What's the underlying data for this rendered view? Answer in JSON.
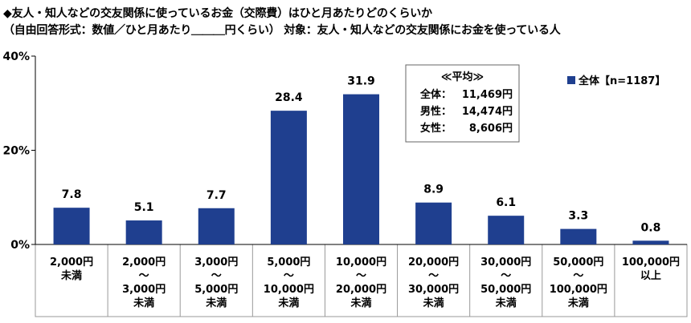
{
  "chart_title": {
    "line1": "◆友人・知人などの交友関係に使っているお金（交際費）はひと月あたりどのくらいか",
    "line2": "（自由回答形式：数値／ひと月あたり＿＿＿円くらい） 対象：友人・知人などの交友関係にお金を使っている人"
  },
  "colors": {
    "bar": "#1f3f8f",
    "axis": "#000000",
    "border": "#999999"
  },
  "legend": {
    "label": "全体【n=1187】",
    "position": "top-right"
  },
  "average_box": {
    "header": "≪平均≫",
    "rows": [
      {
        "label": "全体：",
        "value": "11,469円"
      },
      {
        "label": "男性：",
        "value": "14,474円"
      },
      {
        "label": "女性：",
        "value": " 8,606円"
      }
    ]
  },
  "chart_data": {
    "type": "bar",
    "categories": [
      [
        "2,000円",
        "未満"
      ],
      [
        "2,000円",
        "～",
        "3,000円",
        "未満"
      ],
      [
        "3,000円",
        "～",
        "5,000円",
        "未満"
      ],
      [
        "5,000円",
        "～",
        "10,000円",
        "未満"
      ],
      [
        "10,000円",
        "～",
        "20,000円",
        "未満"
      ],
      [
        "20,000円",
        "～",
        "30,000円",
        "未満"
      ],
      [
        "30,000円",
        "～",
        "50,000円",
        "未満"
      ],
      [
        "50,000円",
        "～",
        "100,000円",
        "未満"
      ],
      [
        "100,000円",
        "以上"
      ]
    ],
    "series": [
      {
        "name": "全体【n=1187】",
        "values": [
          7.8,
          5.1,
          7.7,
          28.4,
          31.9,
          8.9,
          6.1,
          3.3,
          0.8
        ]
      }
    ],
    "data_labels": [
      "7.8",
      "5.1",
      "7.7",
      "28.4",
      "31.9",
      "8.9",
      "6.1",
      "3.3",
      "0.8"
    ],
    "ylim": [
      0,
      40
    ],
    "y_ticks": [
      0,
      20,
      40
    ],
    "y_tick_labels": [
      "0%",
      "20%",
      "40%"
    ],
    "grid": false
  }
}
